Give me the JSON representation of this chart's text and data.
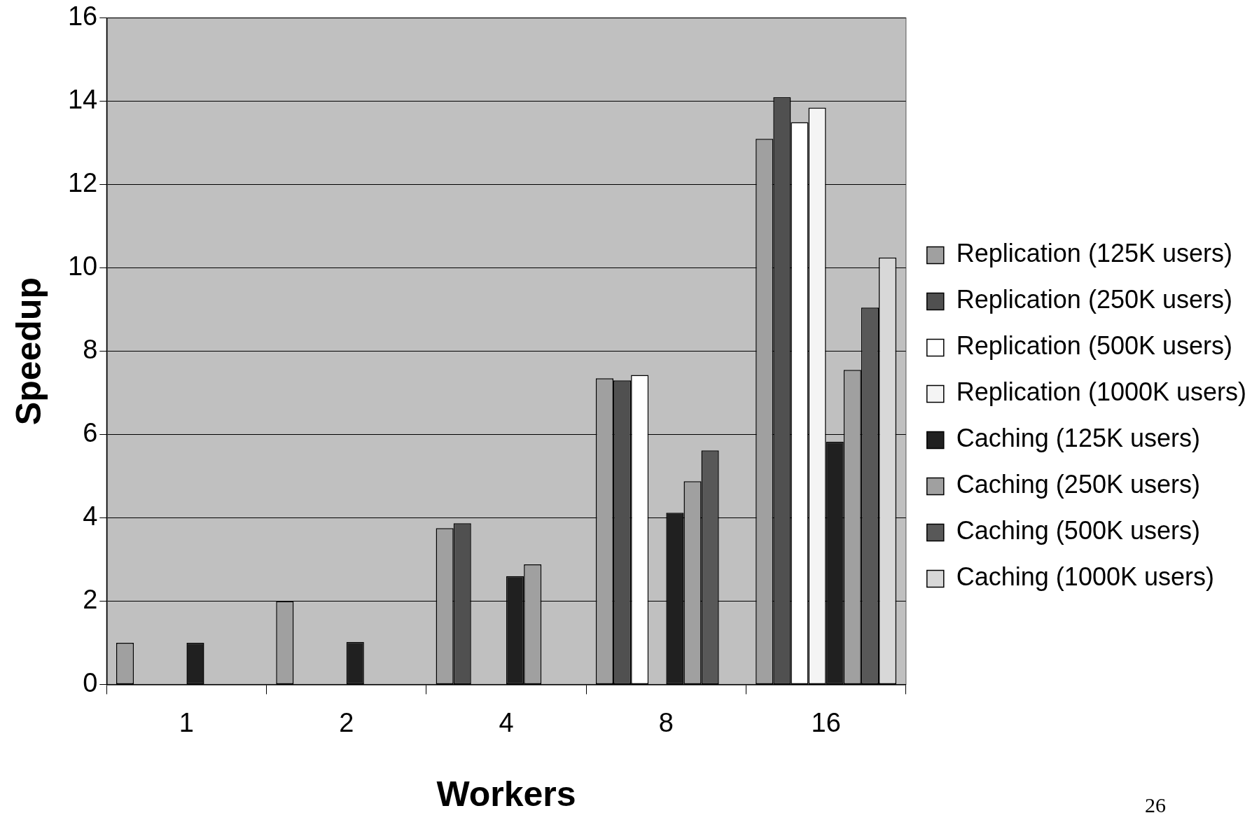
{
  "chart_data": {
    "type": "bar",
    "xlabel": "Workers",
    "ylabel": "Speedup",
    "categories": [
      "1",
      "2",
      "4",
      "8",
      "16"
    ],
    "series": [
      {
        "name": "Replication (125K users)",
        "color": "#a0a0a0",
        "values": [
          1,
          2,
          3.75,
          7.35,
          13.1
        ]
      },
      {
        "name": "Replication (250K users)",
        "color": "#505050",
        "values": [
          null,
          null,
          3.87,
          7.3,
          14.1
        ]
      },
      {
        "name": "Replication (500K users)",
        "color": "#ffffff",
        "values": [
          null,
          null,
          null,
          7.43,
          13.5
        ]
      },
      {
        "name": "Replication (1000K users)",
        "color": "#f4f4f4",
        "values": [
          null,
          null,
          null,
          null,
          13.85
        ]
      },
      {
        "name": "Caching (125K users)",
        "color": "#202020",
        "values": [
          1,
          1.02,
          2.6,
          4.12,
          5.83
        ]
      },
      {
        "name": "Caching (250K users)",
        "color": "#a0a0a0",
        "values": [
          null,
          null,
          2.88,
          4.88,
          7.55
        ]
      },
      {
        "name": "Caching (500K users)",
        "color": "#585858",
        "values": [
          null,
          null,
          null,
          5.62,
          9.05
        ]
      },
      {
        "name": "Caching (1000K users)",
        "color": "#d8d8d8",
        "values": [
          null,
          null,
          null,
          null,
          10.25
        ]
      }
    ],
    "ylim": [
      0,
      16
    ],
    "yticks": [
      0,
      2,
      4,
      6,
      8,
      10,
      12,
      14,
      16
    ],
    "grid": "y",
    "legend": "right",
    "annotations": [
      "26"
    ]
  }
}
